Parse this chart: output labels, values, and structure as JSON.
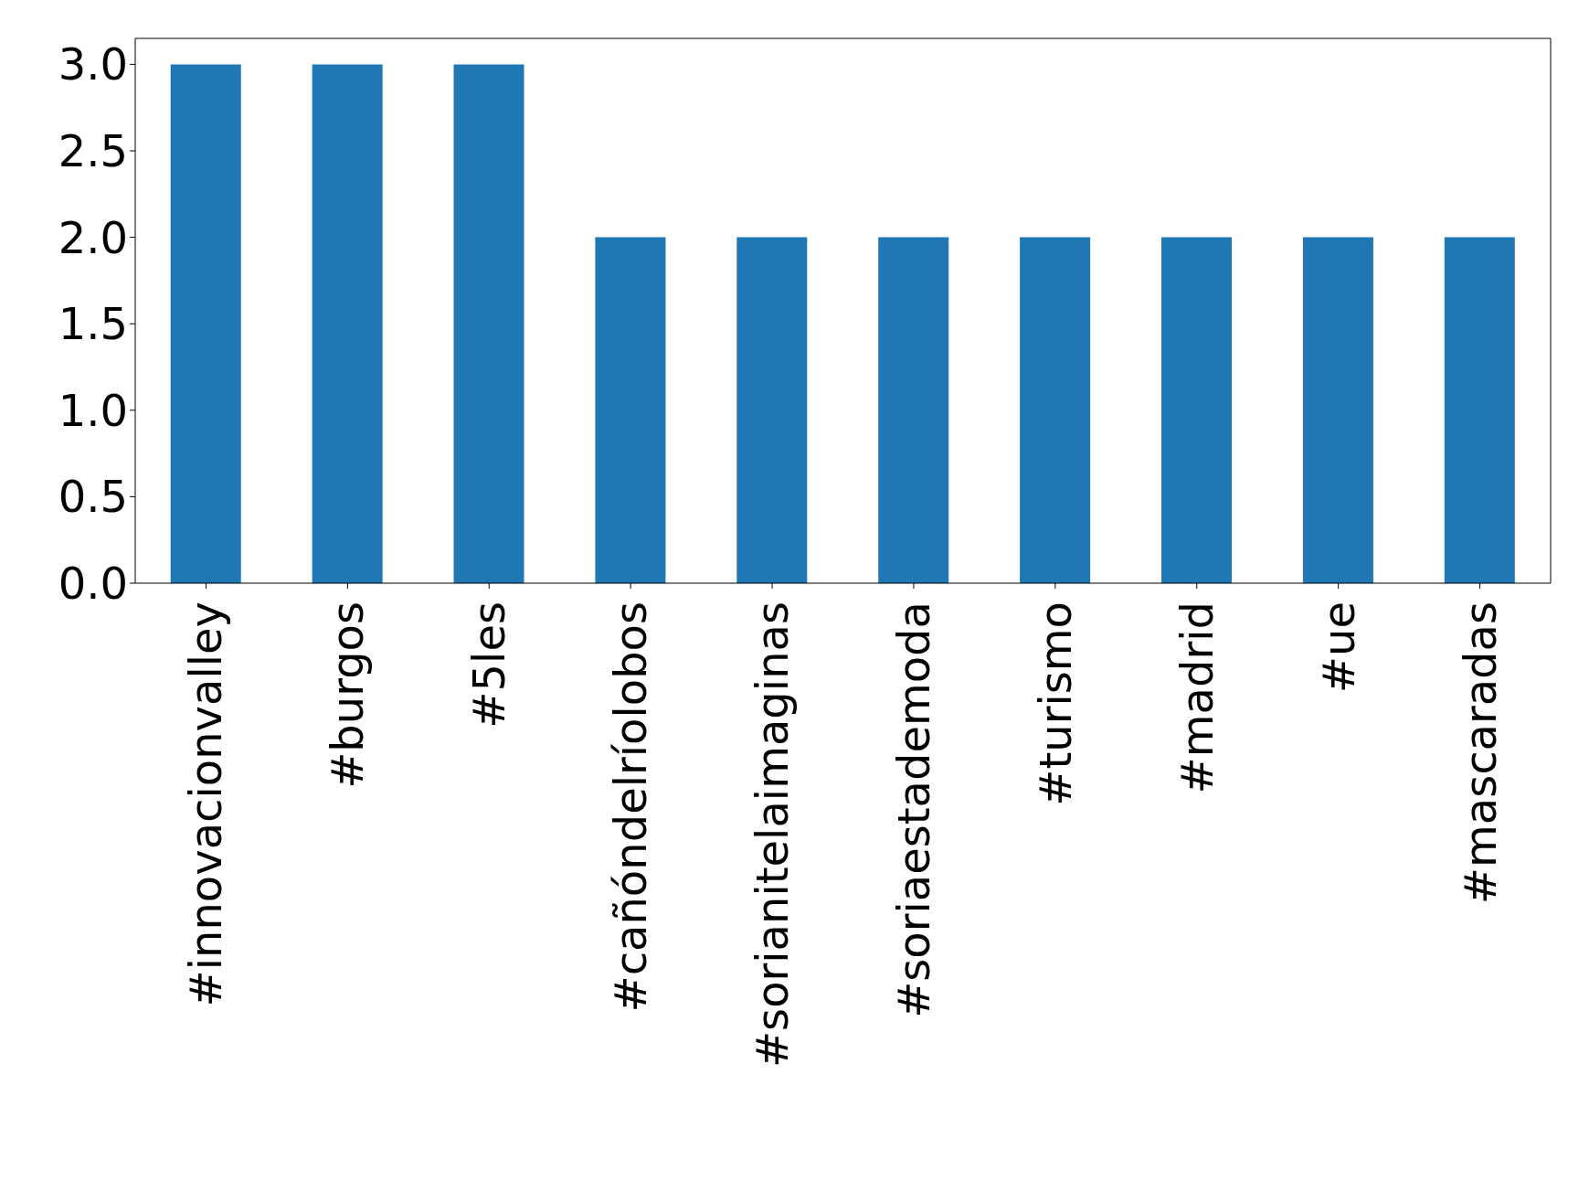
{
  "chart_data": {
    "type": "bar",
    "categories": [
      "#innovacionvalley",
      "#burgos",
      "#5les",
      "#cañóndelríolobos",
      "#sorianitelaimaginas",
      "#soriaestademoda",
      "#turismo",
      "#madrid",
      "#ue",
      "#mascaradas"
    ],
    "values": [
      3,
      3,
      3,
      2,
      2,
      2,
      2,
      2,
      2,
      2
    ],
    "color": "#1f77b4",
    "ylim": [
      0,
      3.15
    ],
    "yticks": [
      {
        "value": 0,
        "label": "0.0"
      },
      {
        "value": 0.5,
        "label": "0.5"
      },
      {
        "value": 1,
        "label": "1.0"
      },
      {
        "value": 1.5,
        "label": "1.5"
      },
      {
        "value": 2,
        "label": "2.0"
      },
      {
        "value": 2.5,
        "label": "2.5"
      },
      {
        "value": 3,
        "label": "3.0"
      }
    ],
    "grid": false,
    "legend": false
  }
}
